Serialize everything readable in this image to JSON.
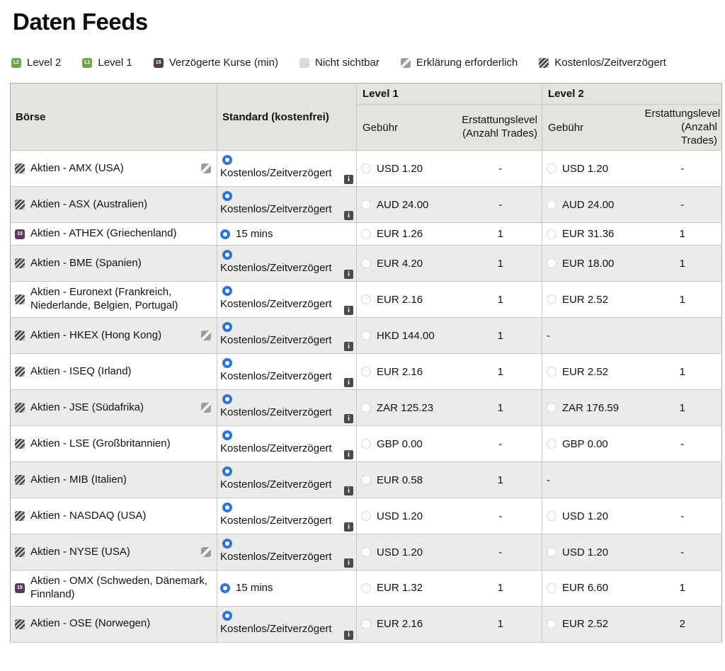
{
  "page": {
    "title": "Daten Feeds"
  },
  "colors": {
    "radio_selected_blue": "#2d72dd",
    "header_bg": "#e4e4df",
    "alt_row_bg": "#ebebe9",
    "badge_green": "#71a646",
    "badge_purple": "#5b3a5e",
    "badge_dark_hatch": "#4c4c4a"
  },
  "legend": {
    "items": [
      {
        "style": "l2",
        "icon_name": "level2-badge-icon",
        "icon_text": "L2",
        "label": "Level 2"
      },
      {
        "style": "l1",
        "icon_name": "level1-badge-icon",
        "icon_text": "L1",
        "label": "Level 1"
      },
      {
        "style": "delayed",
        "icon_name": "delayed-quotes-badge-icon",
        "icon_text": "15",
        "label": "Verzögerte Kurse (min)"
      },
      {
        "style": "notvisible",
        "icon_name": "not-visible-badge-icon",
        "icon_text": "",
        "label": "Nicht sichtbar"
      },
      {
        "style": "explanation",
        "icon_name": "explanation-required-badge-icon",
        "icon_text": "",
        "label": "Erklärung erforderlich"
      },
      {
        "style": "hatch",
        "icon_name": "free-delayed-badge-icon",
        "icon_text": "",
        "label": "Kostenlos/Zeitverzögert"
      }
    ]
  },
  "table": {
    "headers": {
      "boerse": "Börse",
      "standard": "Standard (kostenfrei)",
      "level1": "Level 1",
      "level2": "Level 2",
      "fee": "Gebühr",
      "refund": "Erstattungslevel (Anzahl Trades)"
    },
    "info_icon_glyph": "i",
    "rows": [
      {
        "name": "Aktien - AMX (USA)",
        "left_icon": "hatch",
        "left_icon_text": "",
        "right_icon": "explanation",
        "standard_type": "free",
        "standard_label": "Kostenlos/Zeitverzögert",
        "l1_fee": "USD 1.20",
        "l1_refund": "-",
        "l2_fee": "USD 1.20",
        "l2_refund": "-",
        "l2_radio": true
      },
      {
        "name": "Aktien - ASX (Australien)",
        "left_icon": "hatch",
        "left_icon_text": "",
        "right_icon": null,
        "standard_type": "free",
        "standard_label": "Kostenlos/Zeitverzögert",
        "l1_fee": "AUD 24.00",
        "l1_refund": "-",
        "l2_fee": "AUD 24.00",
        "l2_refund": "-",
        "l2_radio": true
      },
      {
        "name": "Aktien - ATHEX (Griechenland)",
        "left_icon": "delayed",
        "left_icon_text": "15",
        "right_icon": null,
        "standard_type": "delayed",
        "standard_label": "15 mins",
        "l1_fee": "EUR 1.26",
        "l1_refund": "1",
        "l2_fee": "EUR 31.36",
        "l2_refund": "1",
        "l2_radio": true
      },
      {
        "name": "Aktien - BME (Spanien)",
        "left_icon": "hatch",
        "left_icon_text": "",
        "right_icon": null,
        "standard_type": "free",
        "standard_label": "Kostenlos/Zeitverzögert",
        "l1_fee": "EUR 4.20",
        "l1_refund": "1",
        "l2_fee": "EUR 18.00",
        "l2_refund": "1",
        "l2_radio": true
      },
      {
        "name": "Aktien - Euronext (Frankreich, Niederlande, Belgien, Portugal)",
        "left_icon": "hatch",
        "left_icon_text": "",
        "right_icon": null,
        "standard_type": "free",
        "standard_label": "Kostenlos/Zeitverzögert",
        "l1_fee": "EUR 2.16",
        "l1_refund": "1",
        "l2_fee": "EUR 2.52",
        "l2_refund": "1",
        "l2_radio": true
      },
      {
        "name": "Aktien - HKEX (Hong Kong)",
        "left_icon": "hatch",
        "left_icon_text": "",
        "right_icon": "explanation",
        "standard_type": "free",
        "standard_label": "Kostenlos/Zeitverzögert",
        "l1_fee": "HKD 144.00",
        "l1_refund": "1",
        "l2_fee": "-",
        "l2_refund": "",
        "l2_radio": false
      },
      {
        "name": "Aktien - ISEQ (Irland)",
        "left_icon": "hatch",
        "left_icon_text": "",
        "right_icon": null,
        "standard_type": "free",
        "standard_label": "Kostenlos/Zeitverzögert",
        "l1_fee": "EUR 2.16",
        "l1_refund": "1",
        "l2_fee": "EUR 2.52",
        "l2_refund": "1",
        "l2_radio": true
      },
      {
        "name": "Aktien - JSE (Südafrika)",
        "left_icon": "hatch",
        "left_icon_text": "",
        "right_icon": "explanation",
        "standard_type": "free",
        "standard_label": "Kostenlos/Zeitverzögert",
        "l1_fee": "ZAR 125.23",
        "l1_refund": "1",
        "l2_fee": "ZAR 176.59",
        "l2_refund": "1",
        "l2_radio": true
      },
      {
        "name": "Aktien - LSE (Großbritannien)",
        "left_icon": "hatch",
        "left_icon_text": "",
        "right_icon": null,
        "standard_type": "free",
        "standard_label": "Kostenlos/Zeitverzögert",
        "l1_fee": "GBP 0.00",
        "l1_refund": "-",
        "l2_fee": "GBP 0.00",
        "l2_refund": "-",
        "l2_radio": true
      },
      {
        "name": "Aktien - MIB (Italien)",
        "left_icon": "hatch",
        "left_icon_text": "",
        "right_icon": null,
        "standard_type": "free",
        "standard_label": "Kostenlos/Zeitverzögert",
        "l1_fee": "EUR 0.58",
        "l1_refund": "1",
        "l2_fee": "-",
        "l2_refund": "",
        "l2_radio": false
      },
      {
        "name": "Aktien - NASDAQ (USA)",
        "left_icon": "hatch",
        "left_icon_text": "",
        "right_icon": null,
        "standard_type": "free",
        "standard_label": "Kostenlos/Zeitverzögert",
        "l1_fee": "USD 1.20",
        "l1_refund": "-",
        "l2_fee": "USD 1.20",
        "l2_refund": "-",
        "l2_radio": true
      },
      {
        "name": "Aktien - NYSE (USA)",
        "left_icon": "hatch",
        "left_icon_text": "",
        "right_icon": "explanation",
        "standard_type": "free",
        "standard_label": "Kostenlos/Zeitverzögert",
        "l1_fee": "USD 1.20",
        "l1_refund": "-",
        "l2_fee": "USD 1.20",
        "l2_refund": "-",
        "l2_radio": true
      },
      {
        "name": "Aktien - OMX (Schweden, Dänemark, Finnland)",
        "left_icon": "delayed",
        "left_icon_text": "15",
        "right_icon": null,
        "standard_type": "delayed",
        "standard_label": "15 mins",
        "l1_fee": "EUR 1.32",
        "l1_refund": "1",
        "l2_fee": "EUR 6.60",
        "l2_refund": "1",
        "l2_radio": true
      },
      {
        "name": "Aktien - OSE (Norwegen)",
        "left_icon": "hatch",
        "left_icon_text": "",
        "right_icon": null,
        "standard_type": "free",
        "standard_label": "Kostenlos/Zeitverzögert",
        "l1_fee": "EUR 2.16",
        "l1_refund": "1",
        "l2_fee": "EUR 2.52",
        "l2_refund": "2",
        "l2_radio": true
      }
    ]
  }
}
